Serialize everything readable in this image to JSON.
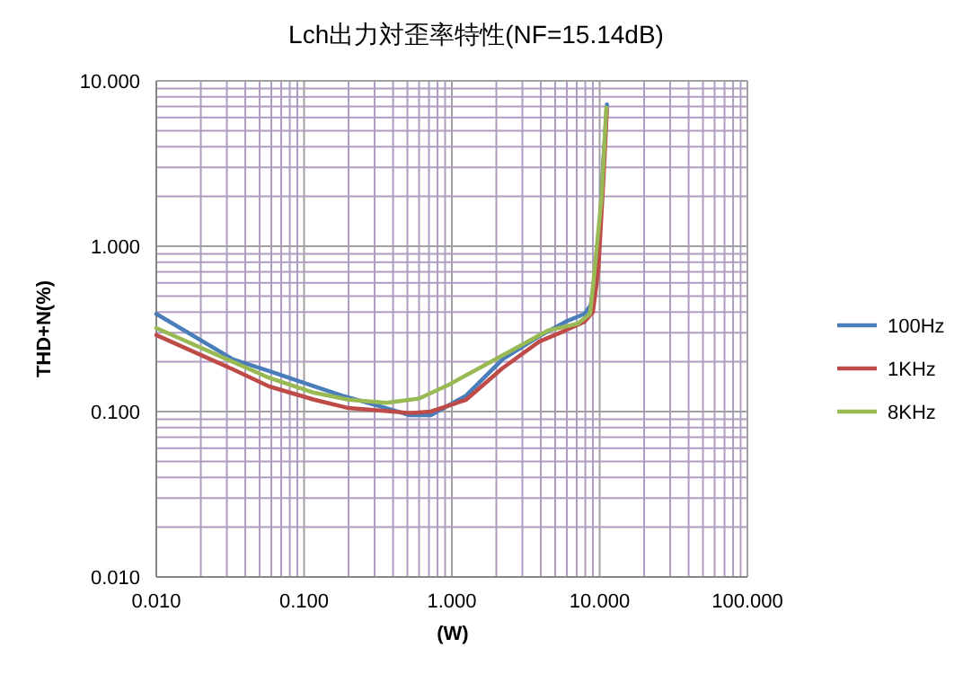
{
  "chart_data": {
    "type": "line",
    "title": "Lch出力対歪率特性(NF=15.14dB)",
    "xlabel": "(W)",
    "ylabel": "THD+N(%)",
    "log": "xy",
    "grid": true,
    "legend": "right",
    "marker": "none",
    "line_style": "solid",
    "xlim": [
      0.01,
      100
    ],
    "ylim": [
      0.01,
      10
    ],
    "xticks": [
      {
        "value": 0.01,
        "label": "0.010"
      },
      {
        "value": 0.1,
        "label": "0.100"
      },
      {
        "value": 1,
        "label": "1.000"
      },
      {
        "value": 10,
        "label": "10.000"
      },
      {
        "value": 100,
        "label": "100.000"
      }
    ],
    "yticks": [
      {
        "value": 0.01,
        "label": "0.010"
      },
      {
        "value": 0.1,
        "label": "0.100"
      },
      {
        "value": 1,
        "label": "1.000"
      },
      {
        "value": 10,
        "label": "10.000"
      }
    ],
    "series": [
      {
        "name": "100Hz",
        "color": "#4a7ebb",
        "x": [
          0.01,
          0.033,
          0.058,
          0.117,
          0.18,
          0.36,
          0.52,
          0.72,
          1.25,
          2.2,
          3.9,
          5.9,
          7.9,
          8.7,
          9.8,
          10.6,
          11.2
        ],
        "values": [
          0.39,
          0.207,
          0.176,
          0.142,
          0.125,
          0.105,
          0.095,
          0.095,
          0.125,
          0.207,
          0.286,
          0.35,
          0.39,
          0.44,
          0.93,
          3.3,
          7.2
        ]
      },
      {
        "name": "1KHz",
        "color": "#be4b48",
        "x": [
          0.01,
          0.033,
          0.058,
          0.117,
          0.2,
          0.4,
          0.52,
          0.72,
          1.25,
          2.2,
          3.9,
          5.9,
          7.9,
          9.0,
          9.8,
          10.6,
          11.2
        ],
        "values": [
          0.29,
          0.18,
          0.142,
          0.118,
          0.105,
          0.1,
          0.098,
          0.1,
          0.118,
          0.183,
          0.265,
          0.31,
          0.35,
          0.4,
          0.72,
          2.5,
          6.7
        ]
      },
      {
        "name": "8KHz",
        "color": "#98b954",
        "x": [
          0.01,
          0.033,
          0.058,
          0.117,
          0.2,
          0.36,
          0.6,
          0.95,
          1.65,
          2.9,
          4.5,
          7.1,
          8.6,
          9.0,
          10.3,
          11.1
        ],
        "values": [
          0.32,
          0.2,
          0.16,
          0.13,
          0.118,
          0.113,
          0.12,
          0.145,
          0.19,
          0.25,
          0.31,
          0.34,
          0.39,
          0.56,
          1.97,
          6.9
        ]
      }
    ]
  }
}
